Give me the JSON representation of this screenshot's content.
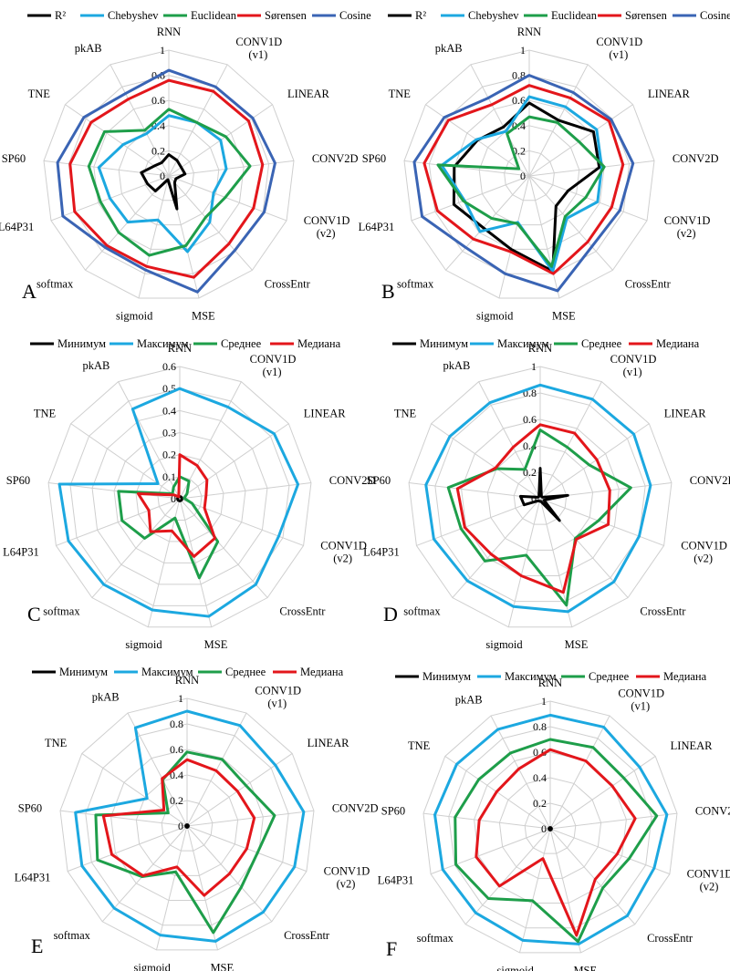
{
  "figure": {
    "categories": [
      "RNN",
      "CONV1D (v1)",
      "LINEAR",
      "CONV2D",
      "CONV1D (v2)",
      "CrossEntr",
      "MSE",
      "sigmoid",
      "softmax",
      "L64P31",
      "SP60",
      "TNE",
      "pkAB"
    ],
    "colors": {
      "black": "#000000",
      "blue": "#1ca8e0",
      "green": "#1e9e4a",
      "red": "#e3161b",
      "darkblue": "#3a64b4",
      "grid": "#cfcfcf"
    }
  },
  "chart_data": [
    {
      "panel": "A",
      "type": "radar",
      "ylim": [
        0,
        1
      ],
      "ticks": [
        "0",
        "0.2",
        "0.4",
        "0.6",
        "0.8",
        "1"
      ],
      "legend_position": "top",
      "series": [
        {
          "name": "R²",
          "color": "black",
          "values": [
            0.17,
            0.14,
            0.12,
            0.13,
            0.06,
            0.07,
            0.27,
            0.03,
            0.16,
            0.18,
            0.22,
            0.14,
            0.12
          ]
        },
        {
          "name": "Chebyshev",
          "color": "blue",
          "values": [
            0.48,
            0.48,
            0.5,
            0.46,
            0.38,
            0.49,
            0.62,
            0.36,
            0.49,
            0.5,
            0.56,
            0.44,
            0.38
          ]
        },
        {
          "name": "Euclidean",
          "color": "green",
          "values": [
            0.53,
            0.48,
            0.55,
            0.65,
            0.48,
            0.44,
            0.57,
            0.65,
            0.6,
            0.58,
            0.64,
            0.62,
            0.41
          ]
        },
        {
          "name": "Sørensen",
          "color": "red",
          "values": [
            0.76,
            0.76,
            0.77,
            0.75,
            0.72,
            0.72,
            0.83,
            0.74,
            0.74,
            0.8,
            0.79,
            0.75,
            0.69
          ]
        },
        {
          "name": "Cosine",
          "color": "darkblue",
          "values": [
            0.84,
            0.8,
            0.81,
            0.85,
            0.81,
            0.79,
            0.95,
            0.77,
            0.76,
            0.9,
            0.89,
            0.82,
            0.74
          ]
        }
      ]
    },
    {
      "panel": "B",
      "type": "radar",
      "ylim": [
        0,
        1
      ],
      "ticks": [
        "0",
        "0.2",
        "0.4",
        "0.6",
        "0.8",
        "1"
      ],
      "legend_position": "top",
      "series": [
        {
          "name": "R²",
          "color": "black",
          "values": [
            0.58,
            0.5,
            0.62,
            0.56,
            0.33,
            0.32,
            0.78,
            0.6,
            0.55,
            0.64,
            0.6,
            0.5,
            0.44
          ]
        },
        {
          "name": "Chebyshev",
          "color": "blue",
          "values": [
            0.63,
            0.62,
            0.65,
            0.58,
            0.58,
            0.45,
            0.78,
            0.38,
            0.59,
            0.55,
            0.7,
            0.51,
            0.4
          ]
        },
        {
          "name": "Euclidean",
          "color": "green",
          "values": [
            0.47,
            0.48,
            0.48,
            0.6,
            0.48,
            0.43,
            0.74,
            0.39,
            0.45,
            0.56,
            0.73,
            0.1,
            0.38
          ]
        },
        {
          "name": "Sørensen",
          "color": "red",
          "values": [
            0.72,
            0.7,
            0.77,
            0.75,
            0.7,
            0.7,
            0.8,
            0.62,
            0.67,
            0.78,
            0.84,
            0.78,
            0.64
          ]
        },
        {
          "name": "Cosine",
          "color": "darkblue",
          "values": [
            0.8,
            0.75,
            0.79,
            0.83,
            0.77,
            0.75,
            0.94,
            0.8,
            0.76,
            0.91,
            0.92,
            0.82,
            0.7
          ]
        }
      ]
    },
    {
      "panel": "C",
      "type": "radar",
      "ylim": [
        0,
        0.6
      ],
      "ticks": [
        "0",
        "0.1",
        "0.2",
        "0.3",
        "0.4",
        "0.5",
        "0.6"
      ],
      "legend_position": "top",
      "series": [
        {
          "name": "Минимум",
          "color": "black",
          "values": [
            0.01,
            0.01,
            0.01,
            0.01,
            0.01,
            0.01,
            0.01,
            0.01,
            0.01,
            0.01,
            0.01,
            0.01,
            0.01
          ]
        },
        {
          "name": "Максимум",
          "color": "blue",
          "values": [
            0.5,
            0.47,
            0.52,
            0.54,
            0.48,
            0.52,
            0.55,
            0.52,
            0.52,
            0.54,
            0.55,
            0.12,
            0.46
          ]
        },
        {
          "name": "Среднее",
          "color": "green",
          "values": [
            0.1,
            0.09,
            0.04,
            0.02,
            0.06,
            0.26,
            0.37,
            0.09,
            0.24,
            0.28,
            0.28,
            0.04,
            0.06
          ]
        },
        {
          "name": "Медиана",
          "color": "red",
          "values": [
            0.2,
            0.17,
            0.15,
            0.12,
            0.12,
            0.24,
            0.27,
            0.15,
            0.2,
            0.15,
            0.19,
            0.03,
            0.01
          ]
        }
      ]
    },
    {
      "panel": "D",
      "type": "radar",
      "ylim": [
        0,
        1
      ],
      "ticks": [
        "0",
        "0.2",
        "0.4",
        "0.6",
        "0.8",
        "1"
      ],
      "legend_position": "top",
      "series": [
        {
          "name": "Минимум",
          "color": "black",
          "values": [
            0.23,
            0.02,
            0.02,
            0.21,
            0.03,
            0.22,
            0.02,
            0.02,
            0.02,
            0.13,
            0.15,
            0.02,
            0.02
          ]
        },
        {
          "name": "Максимум",
          "color": "blue",
          "values": [
            0.86,
            0.85,
            0.86,
            0.84,
            0.8,
            0.84,
            0.88,
            0.84,
            0.83,
            0.86,
            0.87,
            0.83,
            0.82
          ]
        },
        {
          "name": "Среднее",
          "color": "green",
          "values": [
            0.52,
            0.44,
            0.45,
            0.69,
            0.47,
            0.4,
            0.83,
            0.44,
            0.63,
            0.64,
            0.7,
            0.4,
            0.25
          ]
        },
        {
          "name": "Медиана",
          "color": "red",
          "values": [
            0.56,
            0.56,
            0.52,
            0.53,
            0.55,
            0.41,
            0.73,
            0.6,
            0.56,
            0.61,
            0.63,
            0.41,
            0.44
          ]
        }
      ]
    },
    {
      "panel": "E",
      "type": "radar",
      "ylim": [
        0,
        1
      ],
      "ticks": [
        "0",
        "0.2",
        "0.4",
        "0.6",
        "0.8",
        "1"
      ],
      "legend_position": "top",
      "series": [
        {
          "name": "Минимум",
          "color": "black",
          "values": [
            0.01,
            0.01,
            0.01,
            0.01,
            0.01,
            0.01,
            0.01,
            0.01,
            0.01,
            0.01,
            0.01,
            0.01,
            0.01
          ]
        },
        {
          "name": "Максимум",
          "color": "blue",
          "values": [
            0.9,
            0.89,
            0.84,
            0.92,
            0.9,
            0.9,
            0.93,
            0.88,
            0.86,
            0.88,
            0.88,
            0.38,
            0.87
          ]
        },
        {
          "name": "Среднее",
          "color": "green",
          "values": [
            0.58,
            0.59,
            0.56,
            0.69,
            0.59,
            0.64,
            0.86,
            0.37,
            0.53,
            0.75,
            0.72,
            0.18,
            0.41
          ]
        },
        {
          "name": "Медиана",
          "color": "red",
          "values": [
            0.52,
            0.49,
            0.48,
            0.53,
            0.5,
            0.5,
            0.56,
            0.33,
            0.52,
            0.63,
            0.66,
            0.22,
            0.42
          ]
        }
      ]
    },
    {
      "panel": "F",
      "type": "radar",
      "ylim": [
        0,
        1
      ],
      "ticks": [
        "0",
        "0.2",
        "0.4",
        "0.6",
        "0.8",
        "1"
      ],
      "legend_position": "top",
      "series": [
        {
          "name": "Минимум",
          "color": "black",
          "values": [
            0.01,
            0.01,
            0.01,
            0.01,
            0.01,
            0.01,
            0.01,
            0.01,
            0.01,
            0.01,
            0.01,
            0.01,
            0.01
          ]
        },
        {
          "name": "Максимум",
          "color": "blue",
          "values": [
            0.89,
            0.9,
            0.85,
            0.92,
            0.87,
            0.91,
            0.93,
            0.9,
            0.88,
            0.9,
            0.91,
            0.89,
            0.88
          ]
        },
        {
          "name": "Среднее",
          "color": "green",
          "values": [
            0.7,
            0.72,
            0.7,
            0.84,
            0.66,
            0.62,
            0.91,
            0.58,
            0.73,
            0.79,
            0.75,
            0.68,
            0.67
          ]
        },
        {
          "name": "Медиана",
          "color": "red",
          "values": [
            0.62,
            0.6,
            0.59,
            0.67,
            0.56,
            0.53,
            0.86,
            0.24,
            0.6,
            0.62,
            0.56,
            0.51,
            0.53
          ]
        }
      ]
    }
  ]
}
